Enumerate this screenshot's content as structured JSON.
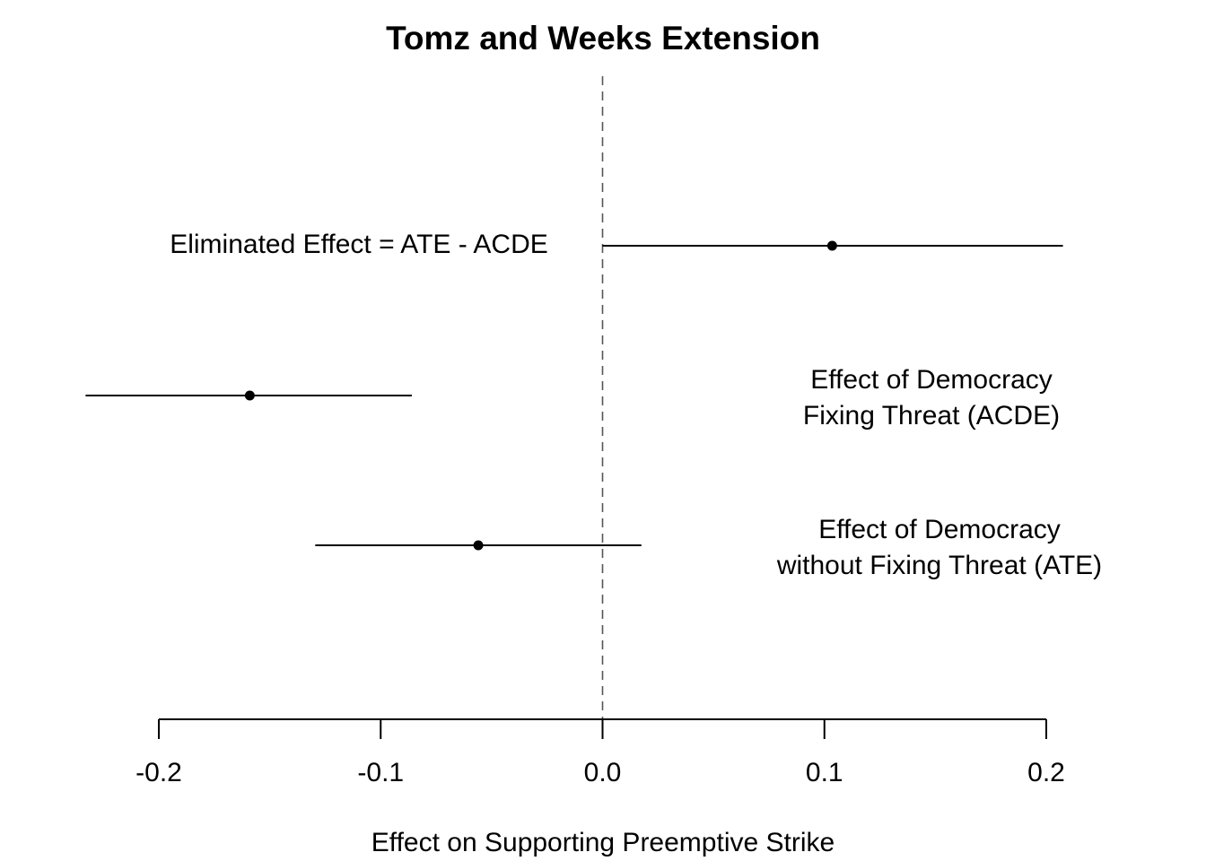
{
  "chart_data": {
    "type": "scatter",
    "title": "Tomz and Weeks Extension",
    "xlabel": "Effect on Supporting Preemptive Strike",
    "ylabel": "",
    "xlim": [
      -0.2,
      0.2
    ],
    "x_ticks": [
      -0.2,
      -0.1,
      0.0,
      0.1,
      0.2
    ],
    "x_tick_labels": [
      "-0.2",
      "-0.1",
      "0.0",
      "0.1",
      "0.2"
    ],
    "reference_line": {
      "x": 0,
      "style": "dashed"
    },
    "grid": false,
    "series": [
      {
        "label_lines": [
          "Eliminated Effect = ATE - ACDE"
        ],
        "estimate": 0.1035,
        "ci_low": 0.0,
        "ci_high": 0.2075
      },
      {
        "label_lines": [
          "Effect of Democracy",
          "Fixing Threat (ACDE)"
        ],
        "estimate": -0.159,
        "ci_low": -0.233,
        "ci_high": -0.086
      },
      {
        "label_lines": [
          "Effect of Democracy",
          "without Fixing Threat (ATE)"
        ],
        "estimate": -0.056,
        "ci_low": -0.1295,
        "ci_high": 0.0175
      }
    ]
  }
}
